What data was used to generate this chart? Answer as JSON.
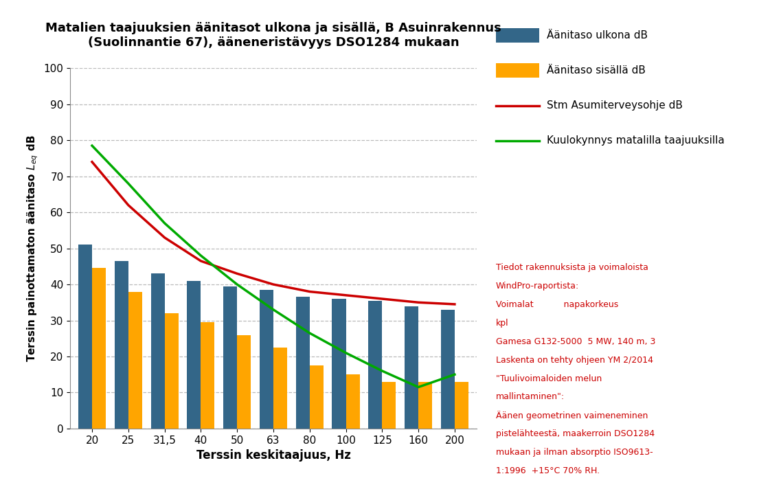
{
  "title": "Matalien taajuuksien äänitasot ulkona ja sisällä, B Asuinrakennus\n(Suolinnantie 67), ääneneristävyys DSO1284 mukaan",
  "xlabel": "Terssin keskitaajuus, Hz",
  "ylabel": "Terssin painottamaton äänitaso $L_{eq}$ dB",
  "categories": [
    "20",
    "25",
    "31,5",
    "40",
    "50",
    "63",
    "80",
    "100",
    "125",
    "160",
    "200"
  ],
  "bar_ulkona": [
    51,
    46.5,
    43,
    41,
    39.5,
    38.5,
    36.5,
    36,
    35.5,
    34,
    33
  ],
  "bar_sisalla": [
    44.5,
    38,
    32,
    29.5,
    26,
    22.5,
    17.5,
    15,
    13,
    13,
    13
  ],
  "color_ulkona": "#336688",
  "color_sisalla": "#FFA500",
  "stm_values": [
    74,
    62,
    53,
    46.5,
    43,
    40,
    38,
    37,
    36,
    35,
    34.5
  ],
  "kuulo_values": [
    78.5,
    68,
    57,
    48,
    40,
    33,
    26.5,
    21,
    16,
    11.5,
    15
  ],
  "color_stm": "#CC0000",
  "color_kuulo": "#00AA00",
  "ylim": [
    0,
    100
  ],
  "ytick_step": 10,
  "grid_color": "#BBBBBB",
  "background_color": "#FFFFFF",
  "legend_ulkona": "Äänitaso ulkona dB",
  "legend_sisalla": "Äänitaso sisällä dB",
  "legend_stm": "Stm Asumiterveysohje dB",
  "legend_kuulo": "Kuulokynnys matalilla taajuuksilla",
  "annotation_text_black": "Tiedot rakennuksista ja voimaloista\nWindPro-raportista:\nVoimalat           napakorkeus\nkpl\nGamesa G132-5000  5 MW, 140 m, 3\nLaskenta on tehty ohjeen YM 2/2014\n\"Tuulivoimaloiden melun\nmallintaminen\":\nÄänen geometrinen vaimeneminen\npistelähteestä, maakerroin DSO1284\nmukaan ja ilman absorptio ISO9613-\n1:1996  +15°C 70% RH.",
  "annotation_color": "#CC0000",
  "bar_width": 0.38
}
